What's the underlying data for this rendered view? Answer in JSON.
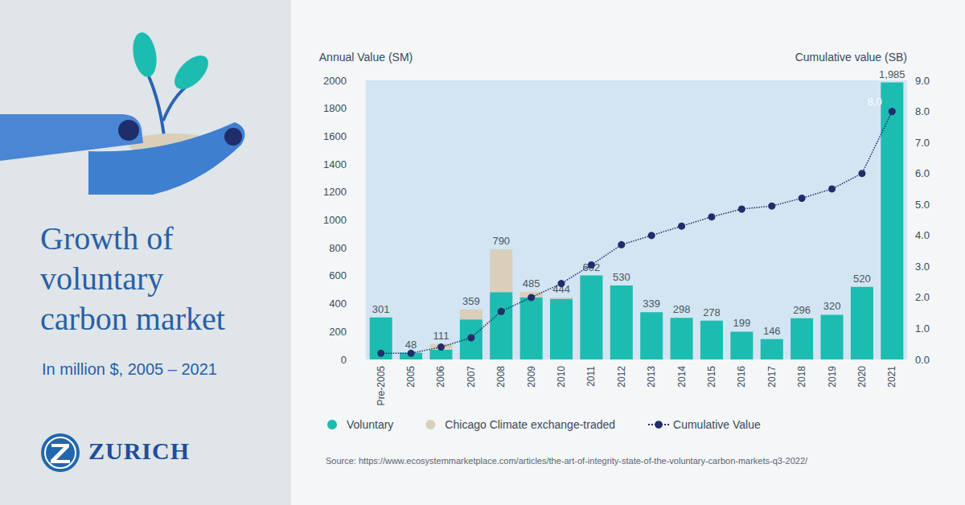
{
  "chart_data": {
    "type": "bar",
    "title": "Growth of voluntary carbon market",
    "subtitle": "In million $, 2005 – 2021",
    "y_label": "Annual Value (SM)",
    "y2_label": "Cumulative value (SB)",
    "source": "Source: https://www.ecosystemmarketplace.com/articles/the-art-of-integrity-state-of-the-voluntary-carbon-markets-q3-2022/",
    "logo": "ZURICH",
    "categories": [
      "Pre-2005",
      "2005",
      "2006",
      "2007",
      "2008",
      "2009",
      "2010",
      "2011",
      "2012",
      "2013",
      "2014",
      "2015",
      "2016",
      "2017",
      "2018",
      "2019",
      "2020",
      "2021"
    ],
    "series": [
      {
        "name": "Voluntary",
        "type": "bar",
        "color": "#1dbcb0",
        "values": [
          301,
          48,
          70,
          287,
          483,
          445,
          435,
          602,
          530,
          339,
          298,
          278,
          199,
          146,
          296,
          320,
          520,
          1985
        ]
      },
      {
        "name": "Chicago Climate exchange-traded",
        "type": "bar",
        "color": "#d9cfbb",
        "values": [
          null,
          null,
          41,
          72,
          307,
          40,
          9,
          null,
          null,
          null,
          null,
          null,
          null,
          null,
          null,
          null,
          null,
          null
        ]
      },
      {
        "name": "Cumulative Value",
        "type": "line",
        "axis": "y2",
        "color": "#1f2d6b",
        "marker": "circle",
        "line_style": "dotted",
        "values": [
          0.2,
          0.2,
          0.4,
          0.7,
          1.55,
          2.0,
          2.45,
          3.05,
          3.7,
          4.0,
          4.3,
          4.6,
          4.85,
          4.95,
          5.2,
          5.5,
          6.0,
          8.0
        ],
        "value_labels": [
          null,
          null,
          null,
          null,
          null,
          null,
          null,
          null,
          null,
          null,
          null,
          null,
          null,
          null,
          null,
          null,
          null,
          "8,0"
        ]
      }
    ],
    "totals": {
      "values": [
        301,
        48,
        111,
        359,
        790,
        485,
        444,
        602,
        530,
        339,
        298,
        278,
        199,
        146,
        296,
        320,
        520,
        1985
      ],
      "value_labels": [
        "301",
        "48",
        "111",
        "359",
        "790",
        "485",
        "444",
        "602",
        "530",
        "339",
        "298",
        "278",
        "199",
        "146",
        "296",
        "320",
        "520",
        "1,985"
      ]
    },
    "stacked": true,
    "data_labels": true,
    "grid": false,
    "legend": "bottom",
    "ylim": [
      0,
      2000
    ],
    "yticks": [
      0,
      200,
      400,
      600,
      800,
      1000,
      1200,
      1400,
      1600,
      1800,
      2000
    ],
    "y2lim": [
      0,
      9
    ],
    "y2ticks": [
      {
        "value": 0,
        "label": "0.0"
      },
      {
        "value": 1,
        "label": "1.0"
      },
      {
        "value": 2,
        "label": "2.0"
      },
      {
        "value": 3,
        "label": "3.0"
      },
      {
        "value": 4,
        "label": "4.0"
      },
      {
        "value": 5,
        "label": "5.0"
      },
      {
        "value": 6,
        "label": "6.0"
      },
      {
        "value": 7,
        "label": "7.0"
      },
      {
        "value": 8,
        "label": "8.0"
      },
      {
        "value": 9,
        "label": "9.0"
      }
    ]
  }
}
